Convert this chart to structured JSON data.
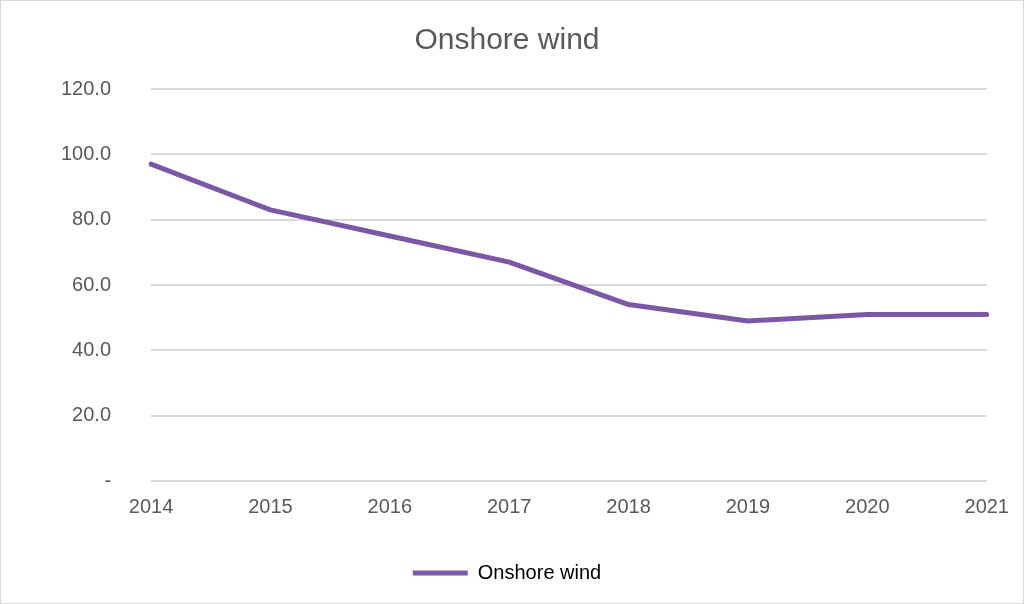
{
  "chart_data": {
    "type": "line",
    "title": "Onshore wind",
    "categories": [
      "2014",
      "2015",
      "2016",
      "2017",
      "2018",
      "2019",
      "2020",
      "2021"
    ],
    "series": [
      {
        "name": "Onshore wind",
        "color": "#7b58a6",
        "values": [
          97,
          83,
          75,
          67,
          54,
          49,
          51,
          51
        ]
      }
    ],
    "ylim": [
      0,
      120
    ],
    "yticks": [
      {
        "value": 0,
        "label": "-"
      },
      {
        "value": 20,
        "label": "20.0"
      },
      {
        "value": 40,
        "label": "40.0"
      },
      {
        "value": 60,
        "label": "60.0"
      },
      {
        "value": 80,
        "label": "80.0"
      },
      {
        "value": 100,
        "label": "100.0"
      },
      {
        "value": 120,
        "label": "120.0"
      }
    ],
    "grid": "y",
    "legend": "bottom",
    "marker": "none",
    "line_style": "solid"
  }
}
